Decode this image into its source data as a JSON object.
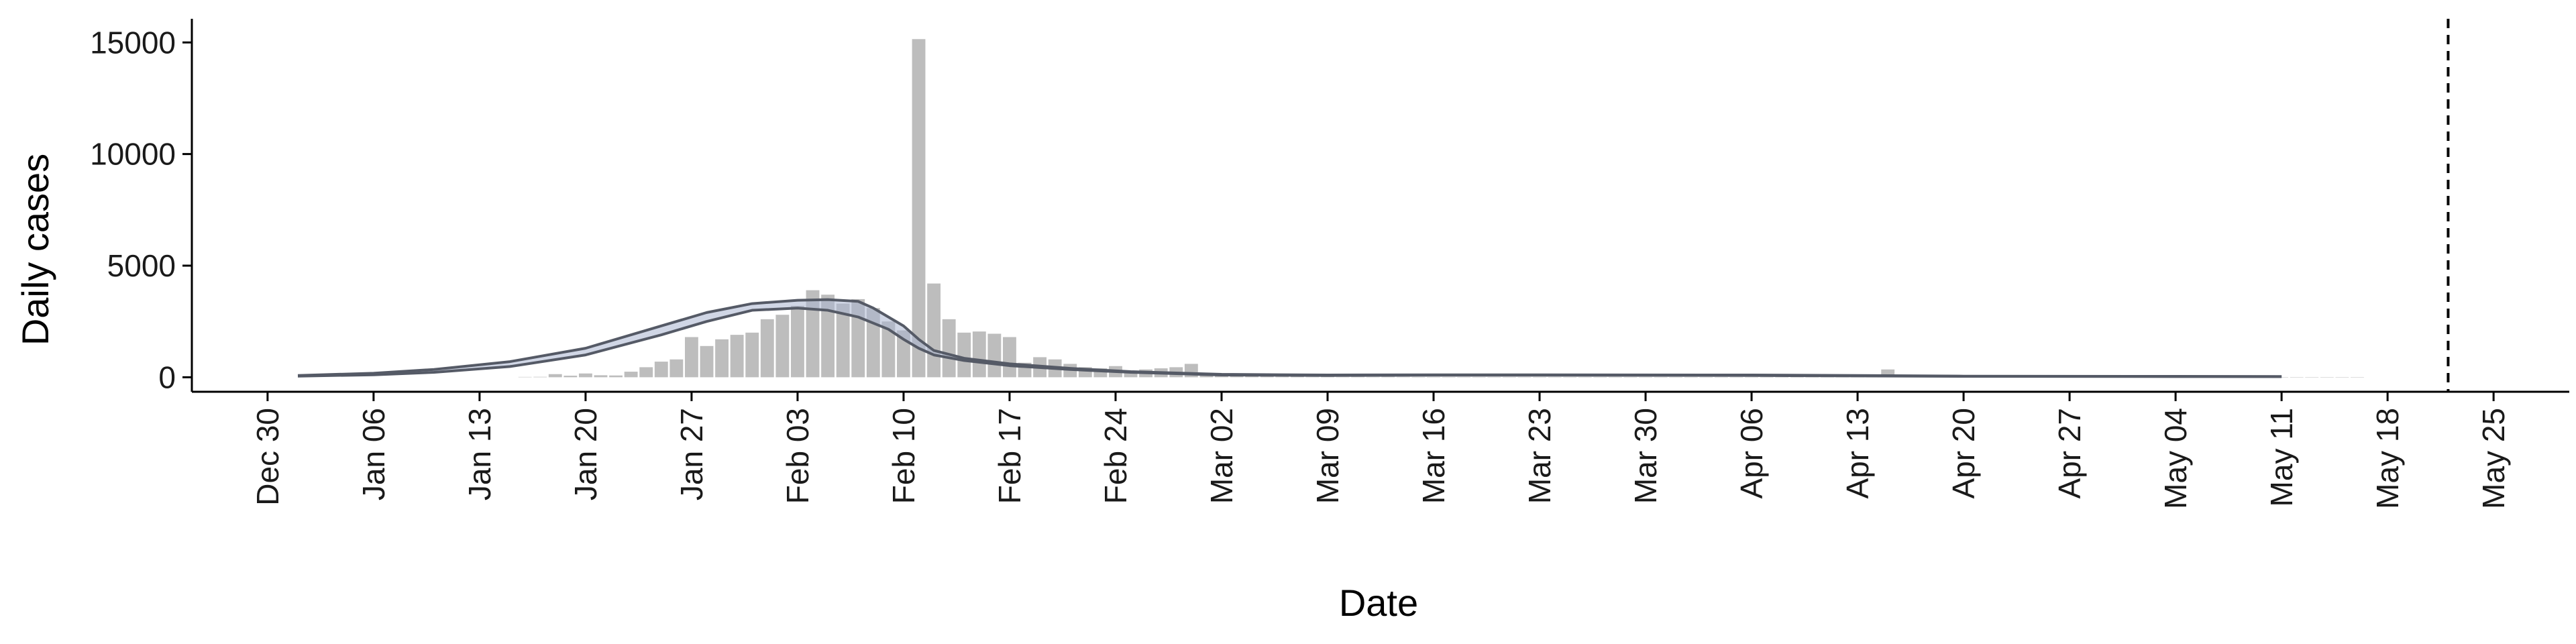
{
  "chart_data": {
    "type": "bar",
    "title": "",
    "xlabel": "Date",
    "ylabel": "Daily cases",
    "ylim": [
      -650,
      16000
    ],
    "yticks": [
      0,
      5000,
      10000,
      15000
    ],
    "grid": false,
    "legend": "none",
    "x_start_date": "2019-12-30",
    "xlim_dates": [
      "2019-12-25",
      "2020-05-30"
    ],
    "x_ticks": [
      {
        "date": "2019-12-30",
        "label": "Dec 30"
      },
      {
        "date": "2020-01-06",
        "label": "Jan 06"
      },
      {
        "date": "2020-01-13",
        "label": "Jan 13"
      },
      {
        "date": "2020-01-20",
        "label": "Jan 20"
      },
      {
        "date": "2020-01-27",
        "label": "Jan 27"
      },
      {
        "date": "2020-02-03",
        "label": "Feb 03"
      },
      {
        "date": "2020-02-10",
        "label": "Feb 10"
      },
      {
        "date": "2020-02-17",
        "label": "Feb 17"
      },
      {
        "date": "2020-02-24",
        "label": "Feb 24"
      },
      {
        "date": "2020-03-02",
        "label": "Mar 02"
      },
      {
        "date": "2020-03-09",
        "label": "Mar 09"
      },
      {
        "date": "2020-03-16",
        "label": "Mar 16"
      },
      {
        "date": "2020-03-23",
        "label": "Mar 23"
      },
      {
        "date": "2020-03-30",
        "label": "Mar 30"
      },
      {
        "date": "2020-04-06",
        "label": "Apr 06"
      },
      {
        "date": "2020-04-13",
        "label": "Apr 13"
      },
      {
        "date": "2020-04-20",
        "label": "Apr 20"
      },
      {
        "date": "2020-04-27",
        "label": "Apr 27"
      },
      {
        "date": "2020-05-04",
        "label": "May 04"
      },
      {
        "date": "2020-05-11",
        "label": "May 11"
      },
      {
        "date": "2020-05-18",
        "label": "May 18"
      },
      {
        "date": "2020-05-25",
        "label": "May 25"
      }
    ],
    "vline_date": "2020-05-22",
    "bars_start_date": "2020-01-16",
    "bar_values": [
      15,
      20,
      140,
      70,
      170,
      90,
      80,
      250,
      450,
      700,
      800,
      1800,
      1400,
      1700,
      1900,
      2000,
      2600,
      2800,
      3200,
      3900,
      3700,
      3300,
      3500,
      3100,
      2500,
      2100,
      15150,
      4200,
      2600,
      2000,
      2050,
      1950,
      1800,
      650,
      900,
      800,
      600,
      450,
      400,
      500,
      300,
      350,
      400,
      450,
      600,
      150,
      80,
      40,
      60,
      100,
      30,
      40,
      20,
      25,
      15,
      20,
      15,
      20,
      15,
      10,
      10,
      10,
      10,
      10,
      10,
      10,
      10,
      10,
      10,
      10,
      10,
      10,
      10,
      10,
      10,
      10,
      10,
      10,
      10,
      10,
      10,
      10,
      10,
      10,
      10,
      10,
      10,
      10,
      10,
      10,
      350,
      20,
      15,
      10,
      10,
      10,
      10,
      10,
      10,
      10,
      10,
      10,
      10,
      10,
      10,
      10,
      10,
      10,
      10,
      10,
      10,
      10,
      10,
      10,
      10,
      10,
      10,
      10,
      10,
      10,
      10,
      10
    ],
    "series": [
      {
        "name": "upper",
        "points": [
          [
            "2020-01-01",
            80
          ],
          [
            "2020-01-06",
            180
          ],
          [
            "2020-01-10",
            350
          ],
          [
            "2020-01-15",
            700
          ],
          [
            "2020-01-20",
            1300
          ],
          [
            "2020-01-25",
            2300
          ],
          [
            "2020-01-28",
            2900
          ],
          [
            "2020-01-31",
            3300
          ],
          [
            "2020-02-03",
            3450
          ],
          [
            "2020-02-05",
            3480
          ],
          [
            "2020-02-07",
            3400
          ],
          [
            "2020-02-08",
            3100
          ],
          [
            "2020-02-10",
            2300
          ],
          [
            "2020-02-11",
            1700
          ],
          [
            "2020-02-12",
            1200
          ],
          [
            "2020-02-14",
            850
          ],
          [
            "2020-02-17",
            600
          ],
          [
            "2020-02-21",
            400
          ],
          [
            "2020-02-25",
            250
          ],
          [
            "2020-03-02",
            130
          ],
          [
            "2020-03-09",
            100
          ],
          [
            "2020-03-16",
            110
          ],
          [
            "2020-03-23",
            110
          ],
          [
            "2020-04-06",
            100
          ],
          [
            "2020-04-13",
            80
          ],
          [
            "2020-04-20",
            50
          ],
          [
            "2020-05-04",
            40
          ],
          [
            "2020-05-11",
            35
          ]
        ]
      },
      {
        "name": "lower",
        "points": [
          [
            "2020-01-01",
            50
          ],
          [
            "2020-01-06",
            110
          ],
          [
            "2020-01-10",
            220
          ],
          [
            "2020-01-15",
            480
          ],
          [
            "2020-01-20",
            1000
          ],
          [
            "2020-01-25",
            1900
          ],
          [
            "2020-01-28",
            2500
          ],
          [
            "2020-01-31",
            3000
          ],
          [
            "2020-02-03",
            3100
          ],
          [
            "2020-02-05",
            3000
          ],
          [
            "2020-02-07",
            2700
          ],
          [
            "2020-02-09",
            2150
          ],
          [
            "2020-02-10",
            1700
          ],
          [
            "2020-02-11",
            1300
          ],
          [
            "2020-02-12",
            1000
          ],
          [
            "2020-02-14",
            750
          ],
          [
            "2020-02-17",
            520
          ],
          [
            "2020-02-21",
            350
          ],
          [
            "2020-02-25",
            220
          ],
          [
            "2020-03-02",
            100
          ],
          [
            "2020-03-09",
            80
          ],
          [
            "2020-03-16",
            90
          ],
          [
            "2020-03-23",
            90
          ],
          [
            "2020-04-06",
            80
          ],
          [
            "2020-04-13",
            60
          ],
          [
            "2020-04-20",
            40
          ],
          [
            "2020-05-04",
            30
          ],
          [
            "2020-05-11",
            25
          ]
        ]
      }
    ],
    "colors": {
      "bar": "#bdbdbd",
      "band": "#a9b4d0",
      "line": "#555a66",
      "axis": "#000000",
      "vline": "#000000"
    }
  }
}
